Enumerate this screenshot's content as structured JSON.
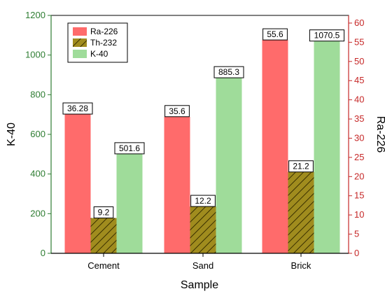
{
  "chart_data": {
    "type": "bar",
    "xlabel": "Sample",
    "ylabel_left": "K-40",
    "ylabel_right": "Ra-226",
    "categories": [
      "Cement",
      "Sand",
      "Brick"
    ],
    "left_axis": {
      "min": 0,
      "max": 1200,
      "ticks": [
        "0",
        "200",
        "400",
        "600",
        "800",
        "1000",
        "1200"
      ],
      "color": "#2e7d32"
    },
    "right_axis": {
      "min": 0,
      "max": 62,
      "ticks": [
        "0",
        "5",
        "10",
        "15",
        "20",
        "25",
        "30",
        "35",
        "40",
        "45",
        "50",
        "55",
        "60"
      ],
      "color": "#c62828"
    },
    "series": [
      {
        "name": "Ra-226",
        "axis": "right",
        "values": [
          36.28,
          35.6,
          55.6
        ],
        "labels": [
          "36.28",
          "35.6",
          "55.6"
        ],
        "color": "#ff6b6b",
        "pattern": "solid"
      },
      {
        "name": "Th-232",
        "axis": "right",
        "values": [
          9.2,
          12.2,
          21.2
        ],
        "labels": [
          "9.2",
          "12.2",
          "21.2"
        ],
        "color": "#a08c1e",
        "pattern": "hatch"
      },
      {
        "name": "K-40",
        "axis": "left",
        "values": [
          501.6,
          885.3,
          1070.5
        ],
        "labels": [
          "501.6",
          "885.3",
          "1070.5"
        ],
        "color": "#9fdc9a",
        "pattern": "solid"
      }
    ],
    "legend": {
      "position": "top-left"
    }
  }
}
